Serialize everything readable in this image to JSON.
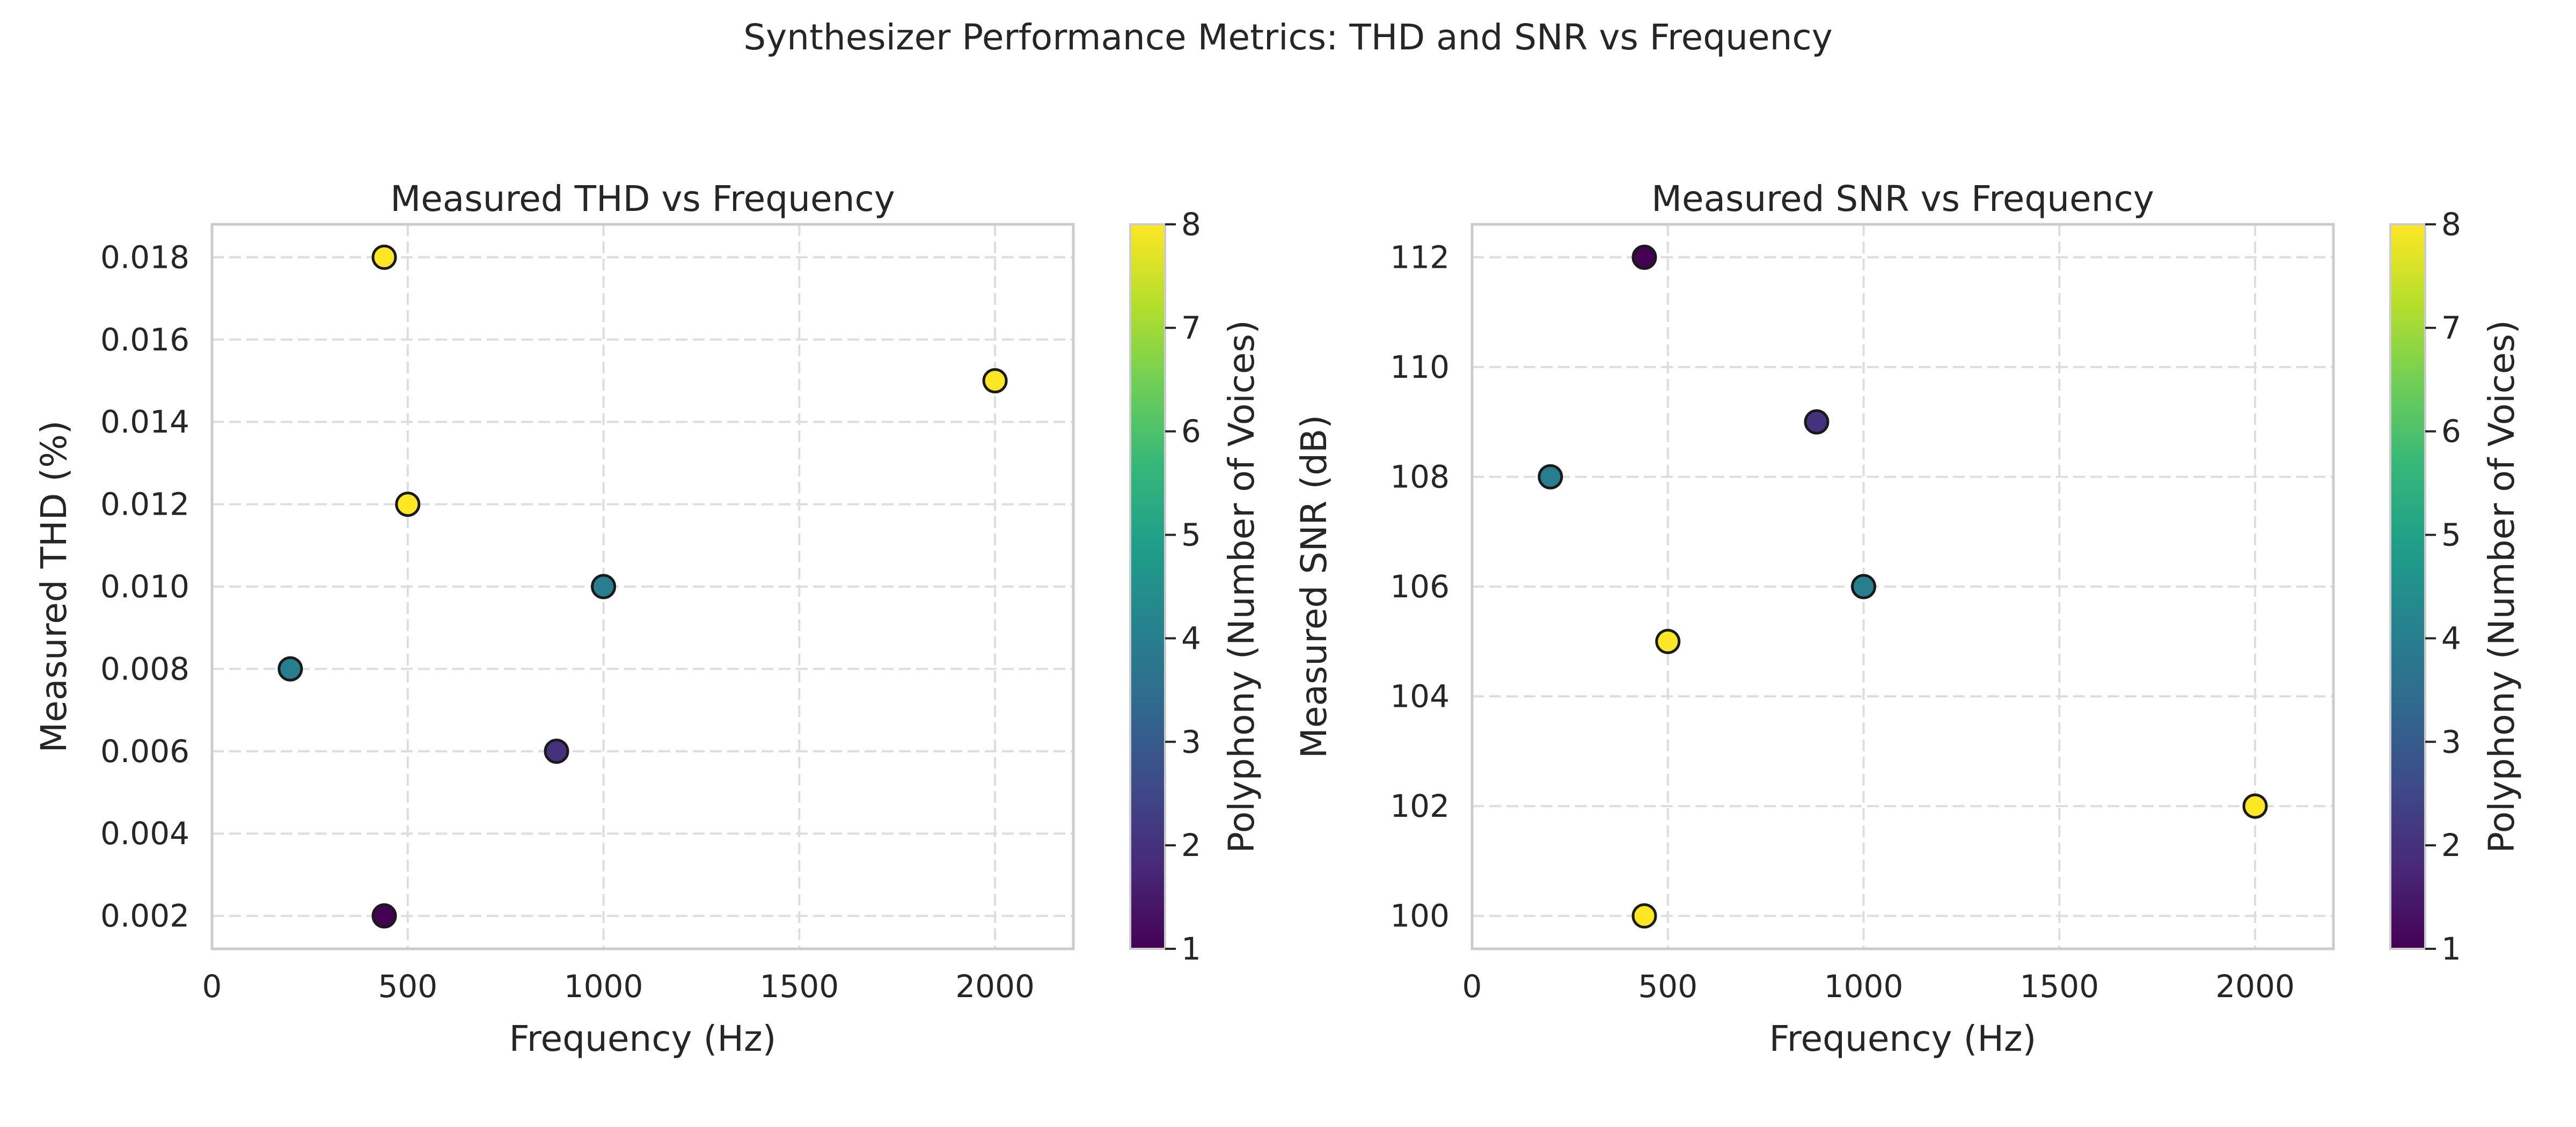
{
  "figure": {
    "title": "Synthesizer Performance Metrics: THD and SNR vs Frequency"
  },
  "chart_data": [
    {
      "type": "scatter",
      "title": "Measured THD vs Frequency",
      "xlabel": "Frequency (Hz)",
      "ylabel": "Measured THD (%)",
      "xlim": [
        0,
        2200
      ],
      "ylim": [
        0.0012,
        0.0188
      ],
      "xticks": [
        0,
        500,
        1000,
        1500,
        2000
      ],
      "xtick_labels": [
        "0",
        "500",
        "1000",
        "1500",
        "2000"
      ],
      "yticks": [
        0.002,
        0.004,
        0.006,
        0.008,
        0.01,
        0.012,
        0.014,
        0.016,
        0.018
      ],
      "ytick_labels": [
        "0.002",
        "0.004",
        "0.006",
        "0.008",
        "0.010",
        "0.012",
        "0.014",
        "0.016",
        "0.018"
      ],
      "grid": true,
      "points": [
        {
          "x": 440,
          "y": 0.018,
          "voices": 8
        },
        {
          "x": 2000,
          "y": 0.015,
          "voices": 8
        },
        {
          "x": 500,
          "y": 0.012,
          "voices": 8
        },
        {
          "x": 1000,
          "y": 0.01,
          "voices": 4
        },
        {
          "x": 200,
          "y": 0.008,
          "voices": 4
        },
        {
          "x": 880,
          "y": 0.006,
          "voices": 2
        },
        {
          "x": 440,
          "y": 0.002,
          "voices": 1
        }
      ],
      "colorbar": {
        "label": "Polyphony (Number of Voices)",
        "colormap": "viridis",
        "range": [
          1,
          8
        ],
        "ticks": [
          "1",
          "2",
          "3",
          "4",
          "5",
          "6",
          "7",
          "8"
        ]
      }
    },
    {
      "type": "scatter",
      "title": "Measured SNR vs Frequency",
      "xlabel": "Frequency (Hz)",
      "ylabel": "Measured SNR (dB)",
      "xlim": [
        0,
        2200
      ],
      "ylim": [
        99.4,
        112.6
      ],
      "xticks": [
        0,
        500,
        1000,
        1500,
        2000
      ],
      "xtick_labels": [
        "0",
        "500",
        "1000",
        "1500",
        "2000"
      ],
      "yticks": [
        100,
        102,
        104,
        106,
        108,
        110,
        112
      ],
      "ytick_labels": [
        "100",
        "102",
        "104",
        "106",
        "108",
        "110",
        "112"
      ],
      "grid": true,
      "points": [
        {
          "x": 440,
          "y": 112,
          "voices": 1
        },
        {
          "x": 880,
          "y": 109,
          "voices": 2
        },
        {
          "x": 200,
          "y": 108,
          "voices": 4
        },
        {
          "x": 1000,
          "y": 106,
          "voices": 4
        },
        {
          "x": 500,
          "y": 105,
          "voices": 8
        },
        {
          "x": 2000,
          "y": 102,
          "voices": 8
        },
        {
          "x": 440,
          "y": 100,
          "voices": 8
        }
      ],
      "colorbar": {
        "label": "Polyphony (Number of Voices)",
        "colormap": "viridis",
        "range": [
          1,
          8
        ],
        "ticks": [
          "1",
          "2",
          "3",
          "4",
          "5",
          "6",
          "7",
          "8"
        ]
      }
    }
  ],
  "colormap_stops": [
    "#440154",
    "#482878",
    "#3e4989",
    "#31688e",
    "#26828e",
    "#1f9e89",
    "#35b779",
    "#6ece58",
    "#b5de2b",
    "#fde725"
  ]
}
